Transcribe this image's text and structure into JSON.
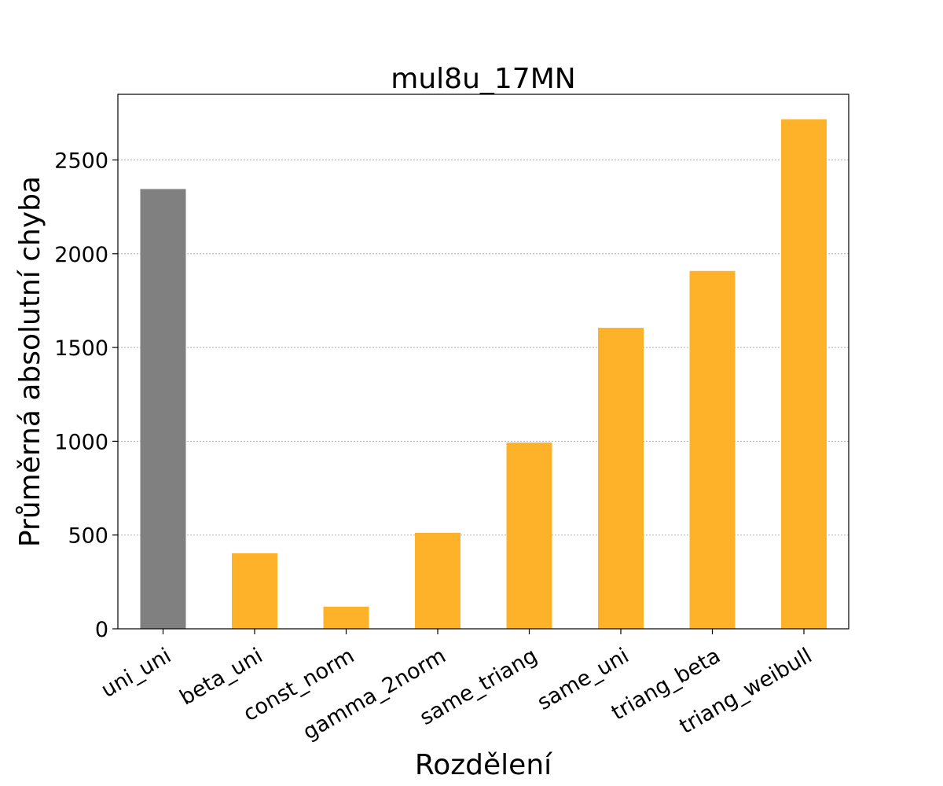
{
  "chart_data": {
    "type": "bar",
    "title": "mul8u_17MN",
    "xlabel": "Rozdělení",
    "ylabel": "Průměrná absolutní chyba",
    "categories": [
      "uni_uni",
      "beta_uni",
      "const_norm",
      "gamma_2norm",
      "same_triang",
      "same_uni",
      "triang_beta",
      "triang_weibull"
    ],
    "values": [
      2345,
      403,
      118,
      512,
      993,
      1605,
      1908,
      2717
    ],
    "colors": [
      "#808080",
      "#fdb229",
      "#fdb229",
      "#fdb229",
      "#fdb229",
      "#fdb229",
      "#fdb229",
      "#fdb229"
    ],
    "ylim": [
      0,
      2850
    ],
    "yticks": [
      0,
      500,
      1000,
      1500,
      2000,
      2500
    ],
    "grid": "y-dotted",
    "legend": "none"
  }
}
